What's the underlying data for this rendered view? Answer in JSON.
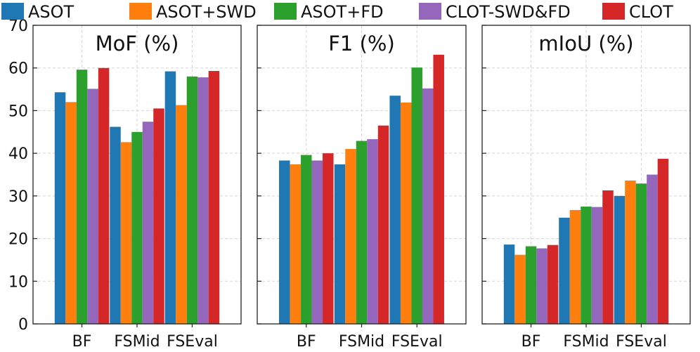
{
  "colors": {
    "ASOT": "#1f77b4",
    "ASOT+SWD": "#ff7f0e",
    "ASOT+FD": "#2ca02c",
    "CLOT-SWD&FD": "#9467bd",
    "CLOT": "#d62728"
  },
  "legend": {
    "items": [
      "ASOT",
      "ASOT+SWD",
      "ASOT+FD",
      "CLOT-SWD&FD",
      "CLOT"
    ]
  },
  "chart_data": [
    {
      "type": "bar",
      "title": "MoF (%)",
      "categories": [
        "BF",
        "FSMid",
        "FSEval"
      ],
      "ylim": [
        0,
        70
      ],
      "yticks": [
        0,
        10,
        20,
        30,
        40,
        50,
        60,
        70
      ],
      "grid": true,
      "series": [
        {
          "name": "ASOT",
          "values": [
            54.3,
            46.2,
            59.2
          ]
        },
        {
          "name": "ASOT+SWD",
          "values": [
            52.0,
            42.6,
            51.3
          ]
        },
        {
          "name": "ASOT+FD",
          "values": [
            59.6,
            45.0,
            58.0
          ]
        },
        {
          "name": "CLOT-SWD&FD",
          "values": [
            55.1,
            47.4,
            57.8
          ]
        },
        {
          "name": "CLOT",
          "values": [
            60.0,
            50.5,
            59.3
          ]
        }
      ]
    },
    {
      "type": "bar",
      "title": "F1 (%)",
      "categories": [
        "BF",
        "FSMid",
        "FSEval"
      ],
      "ylim": [
        0,
        70
      ],
      "grid": true,
      "series": [
        {
          "name": "ASOT",
          "values": [
            38.3,
            37.4,
            53.5
          ]
        },
        {
          "name": "ASOT+SWD",
          "values": [
            37.4,
            41.0,
            51.9
          ]
        },
        {
          "name": "ASOT+FD",
          "values": [
            39.6,
            42.9,
            60.1
          ]
        },
        {
          "name": "CLOT-SWD&FD",
          "values": [
            38.3,
            43.3,
            55.2
          ]
        },
        {
          "name": "CLOT",
          "values": [
            40.0,
            46.5,
            63.1
          ]
        }
      ]
    },
    {
      "type": "bar",
      "title": "mIoU (%)",
      "categories": [
        "BF",
        "FSMid",
        "FSEval"
      ],
      "ylim": [
        0,
        70
      ],
      "grid": true,
      "series": [
        {
          "name": "ASOT",
          "values": [
            18.6,
            24.9,
            30.0
          ]
        },
        {
          "name": "ASOT+SWD",
          "values": [
            16.2,
            26.7,
            33.6
          ]
        },
        {
          "name": "ASOT+FD",
          "values": [
            18.2,
            27.5,
            32.9
          ]
        },
        {
          "name": "CLOT-SWD&FD",
          "values": [
            17.7,
            27.4,
            35.0
          ]
        },
        {
          "name": "CLOT",
          "values": [
            18.5,
            31.3,
            38.7
          ]
        }
      ]
    }
  ]
}
